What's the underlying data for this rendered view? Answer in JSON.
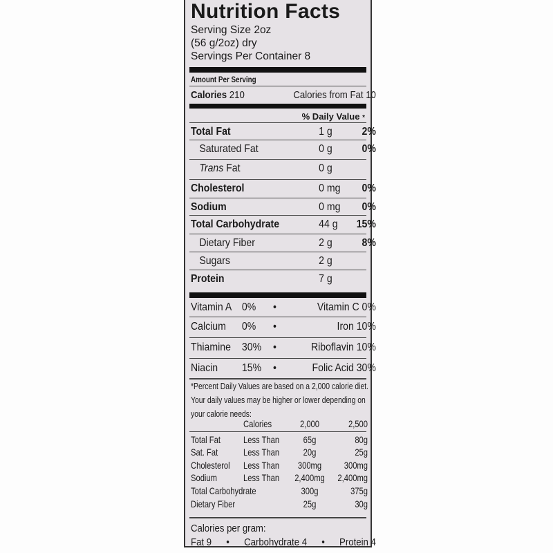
{
  "title": "Nutrition Facts",
  "serving_size": "Serving Size 2oz",
  "serving_weight": "(56 g/2oz) dry",
  "servings_per_container": "Servings Per Container 8",
  "amount_per_serving": "Amount Per Serving",
  "calories_label": "Calories",
  "calories_value": "210",
  "calories_fat": "Calories from Fat  10",
  "daily_value_header": "% Daily Value",
  "daily_value_star": "*",
  "nutrients": [
    {
      "name": "Total Fat",
      "amount": "1 g",
      "dv": "2%",
      "bold": true
    },
    {
      "name": "Saturated Fat",
      "amount": "0 g",
      "dv": "0%",
      "bold": false
    },
    {
      "name": "Trans",
      "name2": " Fat",
      "amount": "0 g",
      "dv": "",
      "bold": false
    },
    {
      "name": "Cholesterol",
      "amount": "0 mg",
      "dv": "0%",
      "bold": true
    },
    {
      "name": "Sodium",
      "amount": "0 mg",
      "dv": "0%",
      "bold": true
    },
    {
      "name": "Total Carbohydrate",
      "amount": "44 g",
      "dv": "15%",
      "bold": true
    },
    {
      "name": "Dietary Fiber",
      "amount": "2 g",
      "dv": "8%",
      "bold": false
    },
    {
      "name": "Sugars",
      "amount": "2 g",
      "dv": "",
      "bold": false
    },
    {
      "name": "Protein",
      "amount": "7 g",
      "dv": "",
      "bold": true
    }
  ],
  "vitamins": [
    {
      "a": "Vitamin A",
      "av": "0%",
      "b": "Vitamin C",
      "bv": "0%"
    },
    {
      "a": "Calcium",
      "av": "0%",
      "b": "Iron",
      "bv": "10%"
    },
    {
      "a": "Thiamine",
      "av": "30%",
      "b": "Riboflavin",
      "bv": "10%"
    },
    {
      "a": "Niacin",
      "av": "15%",
      "b": "Folic Acid",
      "bv": "30%"
    }
  ],
  "bullet": "•",
  "footnote": [
    "*Percent Daily Values are based on a 2,000 calorie diet.",
    "Your daily values may be higher or lower depending on",
    "your calorie needs:"
  ],
  "dv_table": {
    "header": [
      "",
      "Calories",
      "2,000",
      "2,500"
    ],
    "rows": [
      [
        "Total Fat",
        "Less Than",
        "65g",
        "80g"
      ],
      [
        "Sat. Fat",
        "Less Than",
        "20g",
        "25g"
      ],
      [
        "Cholesterol",
        "Less Than",
        "300mg",
        "300mg"
      ],
      [
        "Sodium",
        "Less Than",
        "2,400mg",
        "2,400mg"
      ],
      [
        "Total Carbohydrate",
        "",
        "300g",
        "375g"
      ],
      [
        " Dietary Fiber",
        "",
        "25g",
        "30g"
      ]
    ]
  },
  "calories_per_gram": "Calories per gram:",
  "per_gram": {
    "fat": "Fat 9",
    "carb": "Carbohydrate 4",
    "protein": "Protein 4"
  }
}
